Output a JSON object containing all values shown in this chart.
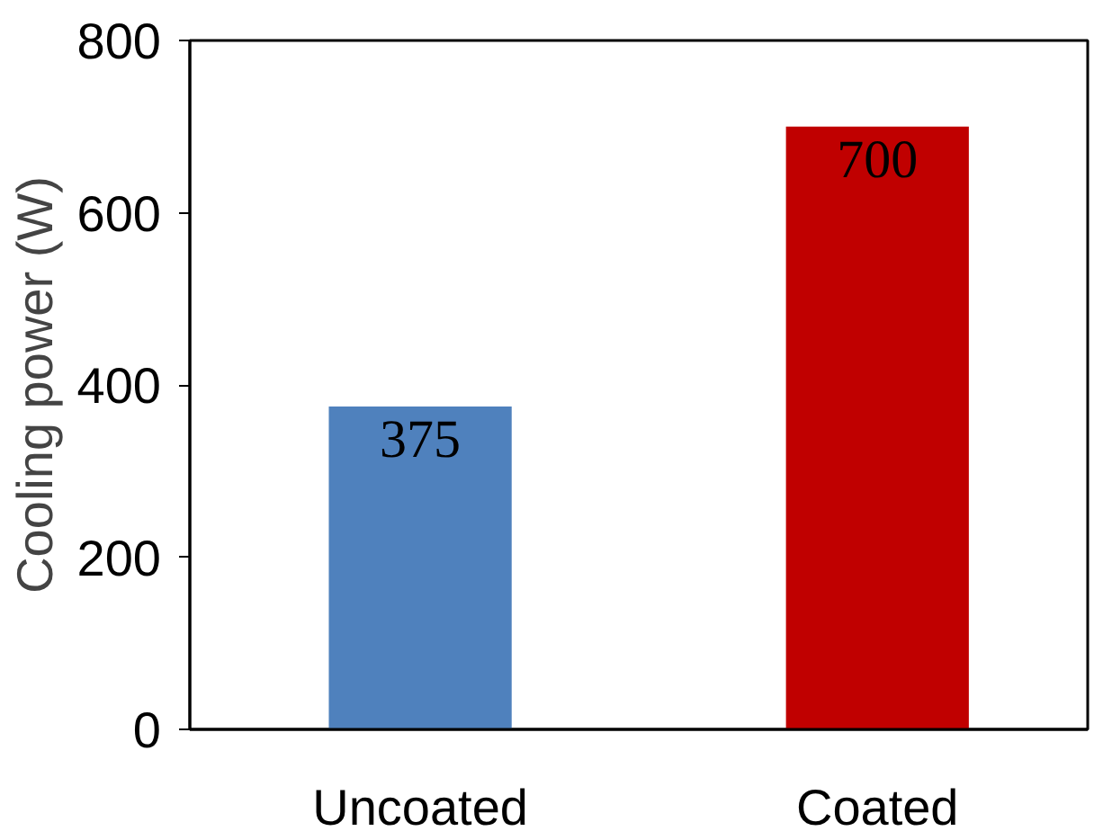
{
  "chart_data": {
    "type": "bar",
    "ylabel": "Cooling power (W)",
    "categories": [
      "Uncoated",
      "Coated"
    ],
    "values": [
      375,
      700
    ],
    "colors": [
      "#4f81bd",
      "#c00000"
    ],
    "ylim": [
      0,
      800
    ],
    "yticks": [
      0,
      200,
      400,
      600,
      800
    ],
    "grid": false,
    "data_labels": true
  }
}
